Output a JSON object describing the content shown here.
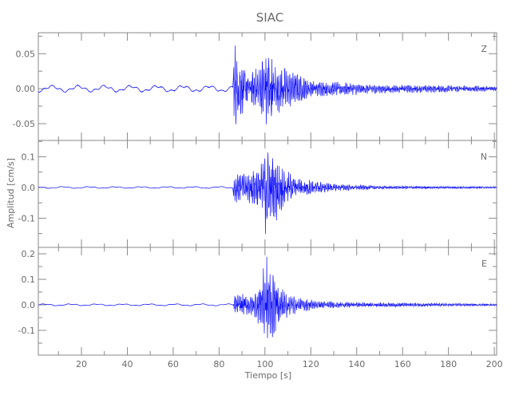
{
  "chart_data": {
    "type": "line",
    "title": "SIAC",
    "xlabel": "Tiempo [s]",
    "ylabel": "Amplitud [cm/s]",
    "xlim": [
      1.2,
      201
    ],
    "x_major_ticks": [
      20,
      40,
      60,
      80,
      100,
      120,
      140,
      160,
      180,
      200
    ],
    "x_minor_step": 10,
    "grid": false,
    "trace_color": "#1010ff",
    "panels": [
      {
        "name": "Z",
        "ylim": [
          -0.074,
          0.08
        ],
        "yticks": [
          0.05,
          0.0,
          -0.05
        ],
        "ytick_labels": [
          "0.05",
          "0.00",
          "-0.05"
        ],
        "y_minor_step": 0.025,
        "envelope": [
          [
            0,
            0.005,
            -0.005
          ],
          [
            86,
            0.005,
            -0.006
          ],
          [
            86.5,
            0.077,
            -0.063
          ],
          [
            88,
            0.048,
            -0.05
          ],
          [
            92,
            0.028,
            -0.028
          ],
          [
            98,
            0.03,
            -0.03
          ],
          [
            100,
            0.07,
            -0.065
          ],
          [
            102,
            0.058,
            -0.07
          ],
          [
            105,
            0.035,
            -0.04
          ],
          [
            110,
            0.03,
            -0.03
          ],
          [
            115,
            0.02,
            -0.02
          ],
          [
            120,
            0.012,
            -0.012
          ],
          [
            135,
            0.009,
            -0.01
          ],
          [
            145,
            0.006,
            -0.008
          ],
          [
            201,
            0.004,
            -0.004
          ]
        ]
      },
      {
        "name": "N",
        "ylim": [
          -0.195,
          0.153
        ],
        "yticks": [
          0.1,
          0.0,
          -0.1
        ],
        "ytick_labels": [
          "0.1",
          "0.0",
          "-0.1"
        ],
        "y_minor_step": 0.05,
        "envelope": [
          [
            0,
            0.003,
            -0.003
          ],
          [
            86,
            0.003,
            -0.003
          ],
          [
            86.5,
            0.05,
            -0.05
          ],
          [
            92,
            0.05,
            -0.05
          ],
          [
            98,
            0.07,
            -0.08
          ],
          [
            100,
            0.14,
            -0.15
          ],
          [
            101.5,
            0.13,
            -0.18
          ],
          [
            104,
            0.1,
            -0.12
          ],
          [
            108,
            0.07,
            -0.07
          ],
          [
            112,
            0.04,
            -0.04
          ],
          [
            120,
            0.025,
            -0.025
          ],
          [
            130,
            0.012,
            -0.012
          ],
          [
            150,
            0.006,
            -0.006
          ],
          [
            201,
            0.003,
            -0.003
          ]
        ]
      },
      {
        "name": "E",
        "ylim": [
          -0.197,
          0.225
        ],
        "yticks": [
          0.2,
          0.1,
          0.0,
          -0.1
        ],
        "ytick_labels": [
          "0.2",
          "0.1",
          "0.0",
          "-0.1"
        ],
        "y_minor_step": 0.05,
        "envelope": [
          [
            0,
            0.004,
            -0.004
          ],
          [
            86,
            0.004,
            -0.004
          ],
          [
            86.5,
            0.045,
            -0.05
          ],
          [
            95,
            0.04,
            -0.045
          ],
          [
            98,
            0.12,
            -0.1
          ],
          [
            101,
            0.21,
            -0.15
          ],
          [
            102.5,
            0.15,
            -0.18
          ],
          [
            105,
            0.09,
            -0.09
          ],
          [
            110,
            0.05,
            -0.05
          ],
          [
            115,
            0.03,
            -0.03
          ],
          [
            125,
            0.015,
            -0.015
          ],
          [
            140,
            0.01,
            -0.01
          ],
          [
            201,
            0.004,
            -0.004
          ]
        ]
      }
    ]
  }
}
